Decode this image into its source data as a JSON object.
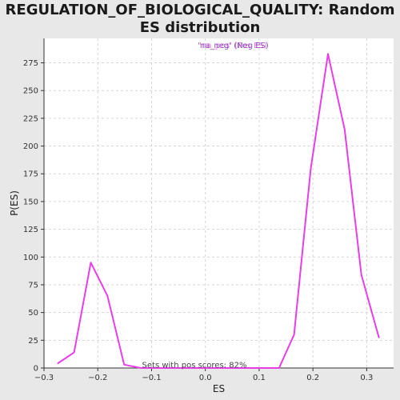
{
  "chart_data": {
    "type": "line",
    "title": "REGULATION_OF_BIOLOGICAL_QUALITY: Random ES distribution",
    "xlabel": "ES",
    "ylabel": "P(ES)",
    "xlim": [
      -0.3,
      0.35
    ],
    "ylim": [
      0,
      297
    ],
    "xticks": [
      -0.3,
      -0.2,
      -0.1,
      0.0,
      0.1,
      0.2,
      0.3
    ],
    "xtick_labels": [
      "−0.3",
      "−0.2",
      "−0.1",
      "0.0",
      "0.1",
      "0.2",
      "0.3"
    ],
    "yticks": [
      0,
      25,
      50,
      75,
      100,
      125,
      150,
      175,
      200,
      225,
      250,
      275
    ],
    "ytick_labels": [
      "0",
      "25",
      "50",
      "75",
      "100",
      "125",
      "150",
      "175",
      "200",
      "225",
      "250",
      "275"
    ],
    "grid": true,
    "legend": "top-center",
    "series": [
      {
        "name": "'na_neg' (Neg ES)",
        "color": "#e83ee8",
        "x": [
          -0.275,
          -0.244,
          -0.213,
          -0.182,
          -0.151,
          -0.12,
          -0.089,
          -0.058,
          -0.027,
          0.004,
          0.035,
          0.066,
          0.097,
          0.128,
          0.137,
          0.165,
          0.196,
          0.228,
          0.259,
          0.29,
          0.323
        ],
        "y": [
          4,
          14,
          95,
          65,
          3,
          0,
          0,
          0,
          0,
          0,
          0,
          0,
          0,
          0,
          0,
          30,
          180,
          283,
          215,
          84,
          27
        ]
      }
    ],
    "legend_entries": [
      "'na_neg' (Neg ES)",
      "'na_pos' (Pos ES)"
    ],
    "annotation": "Sets with pos scores: 82%"
  }
}
